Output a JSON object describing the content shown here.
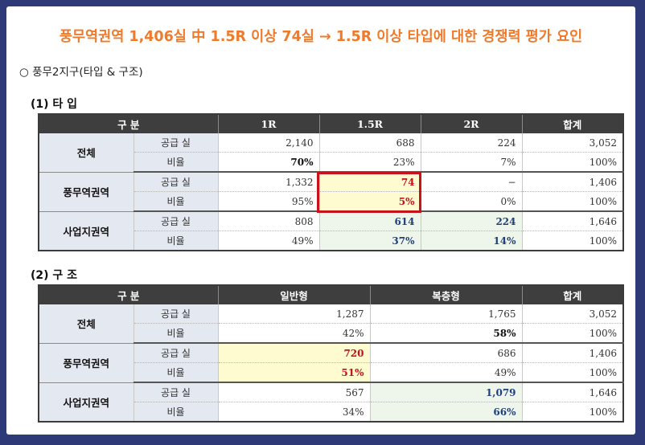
{
  "title": "풍무역권역 1,406실 中 1.5R 이상 74실  → 1.5R 이상 타입에 대한 경쟁력 평가 요인",
  "subtitle": "○ 풍무2지구(타입 & 구조)",
  "type_section": {
    "label": "(1) 타 입",
    "headers": [
      "구 분",
      "1R",
      "1.5R",
      "2R",
      "합계"
    ],
    "groups": [
      {
        "region": "전체",
        "rows": [
          {
            "metric": "공급 실",
            "values": [
              "2,140",
              "688",
              "224",
              "3,052"
            ]
          },
          {
            "metric": "비율",
            "values": [
              "70%",
              "23%",
              "7%",
              "100%"
            ]
          }
        ]
      },
      {
        "region": "풍무역권역",
        "rows": [
          {
            "metric": "공급 실",
            "values": [
              "1,332",
              "74",
              "−",
              "1,406"
            ]
          },
          {
            "metric": "비율",
            "values": [
              "95%",
              "5%",
              "0%",
              "100%"
            ]
          }
        ]
      },
      {
        "region": "사업지권역",
        "rows": [
          {
            "metric": "공급 실",
            "values": [
              "808",
              "614",
              "224",
              "1,646"
            ]
          },
          {
            "metric": "비율",
            "values": [
              "49%",
              "37%",
              "14%",
              "100%"
            ]
          }
        ]
      }
    ]
  },
  "structure_section": {
    "label": "(2) 구 조",
    "headers": [
      "구 분",
      "일반형",
      "복층형",
      "합계"
    ],
    "groups": [
      {
        "region": "전체",
        "rows": [
          {
            "metric": "공급 실",
            "values": [
              "1,287",
              "1,765",
              "3,052"
            ]
          },
          {
            "metric": "비율",
            "values": [
              "42%",
              "58%",
              "100%"
            ]
          }
        ]
      },
      {
        "region": "풍무역권역",
        "rows": [
          {
            "metric": "공급 실",
            "values": [
              "720",
              "686",
              "1,406"
            ]
          },
          {
            "metric": "비율",
            "values": [
              "51%",
              "49%",
              "100%"
            ]
          }
        ]
      },
      {
        "region": "사업지권역",
        "rows": [
          {
            "metric": "공급 실",
            "values": [
              "567",
              "1,079",
              "1,646"
            ]
          },
          {
            "metric": "비율",
            "values": [
              "34%",
              "66%",
              "100%"
            ]
          }
        ]
      }
    ]
  },
  "colors": {
    "title": "#f07a2a",
    "header_bg": "#3e3e3e",
    "label_bg": "#e4e8f0",
    "highlight_yellow": "#fffbd0",
    "highlight_green": "#eef5ea",
    "red": "#c0111b",
    "blue": "#1f3f7d",
    "frame": "#2e3a78"
  }
}
